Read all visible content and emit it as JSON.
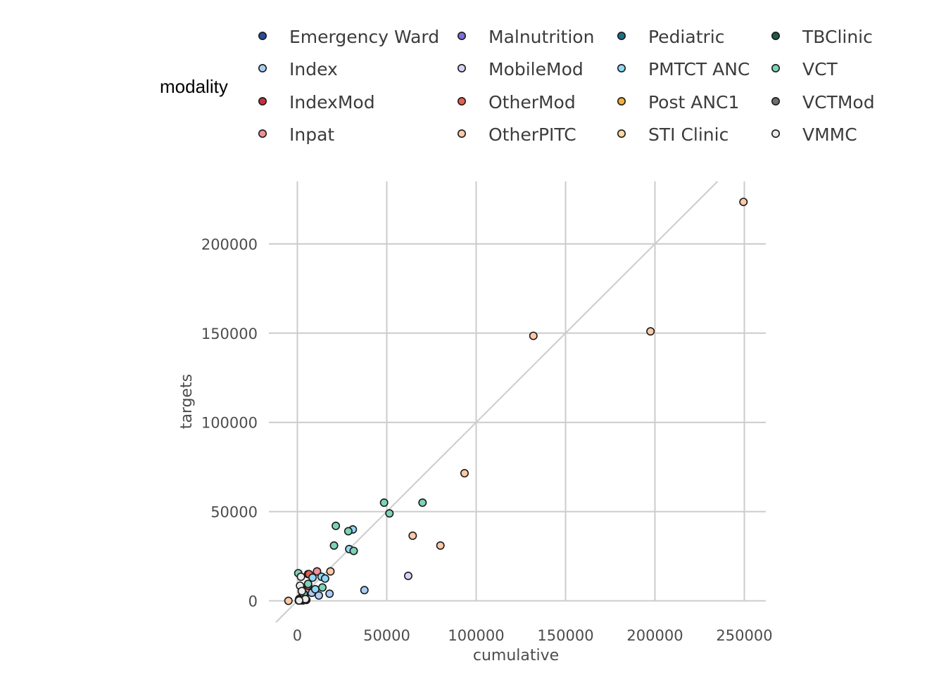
{
  "chart_data": {
    "type": "scatter",
    "xlabel": "cumulative",
    "ylabel": "targets",
    "xlim": [
      -12000,
      262000
    ],
    "ylim": [
      -12000,
      235000
    ],
    "xticks": [
      0,
      50000,
      100000,
      150000,
      200000,
      250000
    ],
    "yticks": [
      0,
      50000,
      100000,
      150000,
      200000
    ],
    "xtick_labels": [
      "0",
      "50000",
      "100000",
      "150000",
      "200000",
      "250000"
    ],
    "ytick_labels": [
      "0",
      "50000",
      "100000",
      "150000",
      "200000"
    ],
    "grid": true,
    "reference_line": "y = x",
    "legend": {
      "title": "modality",
      "placement": "top",
      "columns": 4
    },
    "series": [
      {
        "name": "Emergency Ward",
        "color": "#2a4b9b",
        "points": [
          [
            1200,
            400
          ],
          [
            2500,
            900
          ]
        ]
      },
      {
        "name": "Index",
        "color": "#a9cdf7",
        "points": [
          [
            12000,
            3000
          ],
          [
            18000,
            4000
          ],
          [
            37500,
            6000
          ],
          [
            8000,
            4500
          ],
          [
            4000,
            1500
          ]
        ]
      },
      {
        "name": "IndexMod",
        "color": "#c0323f",
        "points": [
          [
            1500,
            800
          ],
          [
            3500,
            1500
          ],
          [
            2000,
            300
          ]
        ]
      },
      {
        "name": "Inpat",
        "color": "#f28f99",
        "points": [
          [
            11000,
            16500
          ],
          [
            6000,
            15000
          ],
          [
            4500,
            6000
          ],
          [
            3000,
            3500
          ]
        ]
      },
      {
        "name": "Malnutrition",
        "color": "#7e6ee0",
        "points": [
          [
            800,
            150
          ]
        ]
      },
      {
        "name": "MobileMod",
        "color": "#d8d3fb",
        "points": [
          [
            62000,
            14000
          ],
          [
            2000,
            1200
          ],
          [
            1000,
            600
          ]
        ]
      },
      {
        "name": "OtherMod",
        "color": "#e8604c",
        "points": [
          [
            6500,
            15000
          ],
          [
            6000,
            8500
          ],
          [
            4000,
            2500
          ],
          [
            2500,
            1000
          ]
        ]
      },
      {
        "name": "OtherPITC",
        "color": "#ffc9a8",
        "points": [
          [
            249500,
            223500
          ],
          [
            197500,
            151000
          ],
          [
            132000,
            148500
          ],
          [
            93500,
            71500
          ],
          [
            64500,
            36500
          ],
          [
            80000,
            31000
          ],
          [
            18500,
            16500
          ],
          [
            -5000,
            0
          ]
        ]
      },
      {
        "name": "Pediatric",
        "color": "#1b6f8a",
        "points": [
          [
            3500,
            2500
          ],
          [
            1000,
            1000
          ]
        ]
      },
      {
        "name": "PMTCT ANC",
        "color": "#8fd8f7",
        "points": [
          [
            31000,
            40000
          ],
          [
            29000,
            29000
          ],
          [
            13500,
            13500
          ],
          [
            8500,
            13000
          ],
          [
            15500,
            12500
          ],
          [
            10000,
            6500
          ]
        ]
      },
      {
        "name": "Post ANC1",
        "color": "#f2b03a",
        "points": [
          [
            2500,
            1500
          ]
        ]
      },
      {
        "name": "STI Clinic",
        "color": "#ffd9a0",
        "points": [
          [
            1500,
            800
          ]
        ]
      },
      {
        "name": "TBClinic",
        "color": "#1f5a4a",
        "points": [
          [
            5000,
            500
          ],
          [
            3000,
            200
          ]
        ]
      },
      {
        "name": "VCT",
        "color": "#7dd3b7",
        "points": [
          [
            48500,
            55000
          ],
          [
            70000,
            55000
          ],
          [
            51500,
            49000
          ],
          [
            21500,
            42000
          ],
          [
            28500,
            39000
          ],
          [
            20500,
            31000
          ],
          [
            31500,
            28000
          ],
          [
            500,
            15500
          ],
          [
            14000,
            7500
          ],
          [
            6000,
            9500
          ],
          [
            3500,
            4000
          ]
        ]
      },
      {
        "name": "VCTMod",
        "color": "#6e6e6e",
        "points": [
          [
            4000,
            1000
          ],
          [
            1500,
            500
          ]
        ]
      },
      {
        "name": "VMMC",
        "color": "#eaeaea",
        "points": [
          [
            2000,
            13500
          ],
          [
            1500,
            8500
          ],
          [
            2500,
            5500
          ],
          [
            4500,
            1000
          ],
          [
            1000,
            200
          ]
        ]
      }
    ]
  }
}
